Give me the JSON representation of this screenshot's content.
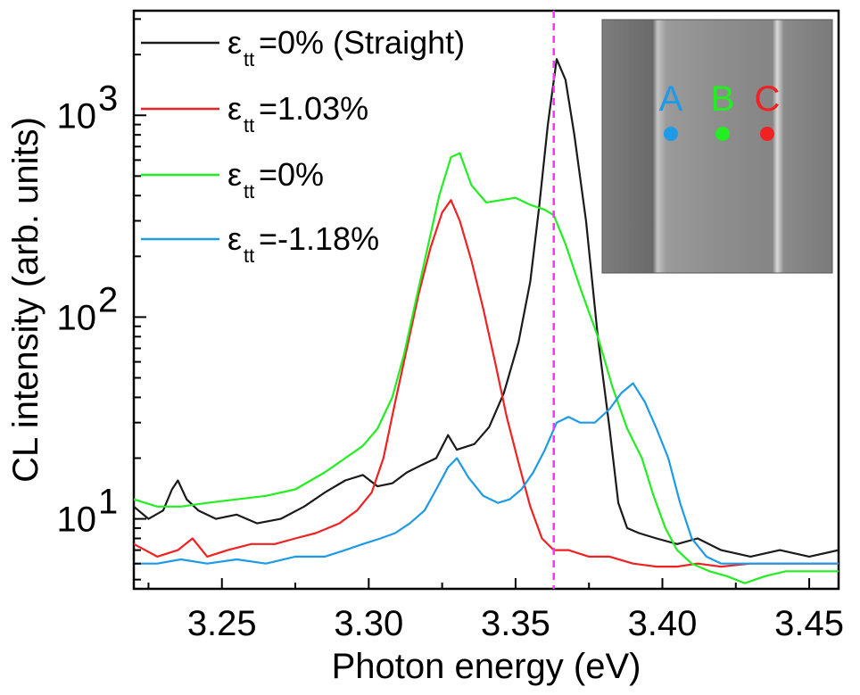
{
  "chart_data": {
    "type": "line",
    "xlabel": "Photon energy (eV)",
    "ylabel": "CL intensity (arb. units)",
    "xlim": [
      3.22,
      3.46
    ],
    "ylim": [
      4.5,
      3300
    ],
    "yscale": "log",
    "x_ticks": [
      3.25,
      3.3,
      3.35,
      3.4,
      3.45
    ],
    "x_tick_labels": [
      "3.25",
      "3.30",
      "3.35",
      "3.40",
      "3.45"
    ],
    "y_ticks": [
      10,
      100,
      1000
    ],
    "y_tick_bases": [
      "10",
      "10",
      "10"
    ],
    "y_tick_exponents": [
      "1",
      "2",
      "3"
    ],
    "grid": false,
    "legend_position": "top-left",
    "reference_line": {
      "x": 3.363,
      "color": "#ff33ff",
      "style": "dashed"
    },
    "series": [
      {
        "legend_base": "ε",
        "legend_sub": "tt",
        "legend_rest": "=0% (Straight)",
        "color": "#1a1a1a",
        "points": [
          [
            3.22,
            11.5
          ],
          [
            3.225,
            10.0
          ],
          [
            3.23,
            11.0
          ],
          [
            3.233,
            14.0
          ],
          [
            3.235,
            15.5
          ],
          [
            3.238,
            12.5
          ],
          [
            3.242,
            11.0
          ],
          [
            3.248,
            10.0
          ],
          [
            3.255,
            10.5
          ],
          [
            3.262,
            9.5
          ],
          [
            3.27,
            10.0
          ],
          [
            3.278,
            11.5
          ],
          [
            3.285,
            13.5
          ],
          [
            3.292,
            15.5
          ],
          [
            3.298,
            16.5
          ],
          [
            3.303,
            14.5
          ],
          [
            3.308,
            15.0
          ],
          [
            3.313,
            17.0
          ],
          [
            3.318,
            18.5
          ],
          [
            3.323,
            20.0
          ],
          [
            3.327,
            26.0
          ],
          [
            3.33,
            22.0
          ],
          [
            3.336,
            23.5
          ],
          [
            3.341,
            28.5
          ],
          [
            3.346,
            42.0
          ],
          [
            3.351,
            75.0
          ],
          [
            3.355,
            150.0
          ],
          [
            3.358,
            350.0
          ],
          [
            3.361,
            900.0
          ],
          [
            3.364,
            1900.0
          ],
          [
            3.367,
            1500.0
          ],
          [
            3.37,
            800.0
          ],
          [
            3.374,
            300.0
          ],
          [
            3.378,
            80.0
          ],
          [
            3.382,
            28.0
          ],
          [
            3.385,
            12.0
          ],
          [
            3.388,
            9.0
          ],
          [
            3.392,
            8.5
          ],
          [
            3.398,
            8.0
          ],
          [
            3.405,
            7.5
          ],
          [
            3.412,
            8.0
          ],
          [
            3.42,
            7.0
          ],
          [
            3.43,
            6.5
          ],
          [
            3.44,
            7.0
          ],
          [
            3.45,
            6.5
          ],
          [
            3.46,
            7.0
          ]
        ]
      },
      {
        "legend_base": "ε",
        "legend_sub": "tt",
        "legend_rest": "=1.03%",
        "color": "#ee2222",
        "points": [
          [
            3.22,
            7.5
          ],
          [
            3.228,
            6.5
          ],
          [
            3.235,
            7.0
          ],
          [
            3.24,
            8.0
          ],
          [
            3.245,
            6.5
          ],
          [
            3.252,
            7.0
          ],
          [
            3.26,
            7.5
          ],
          [
            3.268,
            7.5
          ],
          [
            3.275,
            8.0
          ],
          [
            3.282,
            8.5
          ],
          [
            3.29,
            9.5
          ],
          [
            3.296,
            11.0
          ],
          [
            3.301,
            13.5
          ],
          [
            3.305,
            20.0
          ],
          [
            3.309,
            38.0
          ],
          [
            3.313,
            70.0
          ],
          [
            3.317,
            130.0
          ],
          [
            3.321,
            220.0
          ],
          [
            3.325,
            330.0
          ],
          [
            3.328,
            380.0
          ],
          [
            3.331,
            300.0
          ],
          [
            3.335,
            190.0
          ],
          [
            3.339,
            110.0
          ],
          [
            3.343,
            60.0
          ],
          [
            3.347,
            32.0
          ],
          [
            3.351,
            19.0
          ],
          [
            3.355,
            11.5
          ],
          [
            3.359,
            8.0
          ],
          [
            3.363,
            7.0
          ],
          [
            3.368,
            7.0
          ],
          [
            3.375,
            6.5
          ],
          [
            3.382,
            6.5
          ],
          [
            3.39,
            6.0
          ],
          [
            3.398,
            5.8
          ],
          [
            3.405,
            5.8
          ],
          [
            3.412,
            6.0
          ],
          [
            3.42,
            5.8
          ],
          [
            3.43,
            6.0
          ],
          [
            3.44,
            6.0
          ],
          [
            3.45,
            6.0
          ],
          [
            3.46,
            6.0
          ]
        ]
      },
      {
        "legend_base": "ε",
        "legend_sub": "tt",
        "legend_rest": "=0%",
        "color": "#22ee22",
        "points": [
          [
            3.22,
            12.5
          ],
          [
            3.228,
            11.5
          ],
          [
            3.236,
            11.5
          ],
          [
            3.245,
            12.0
          ],
          [
            3.255,
            12.5
          ],
          [
            3.265,
            13.0
          ],
          [
            3.275,
            14.0
          ],
          [
            3.285,
            17.0
          ],
          [
            3.292,
            20.0
          ],
          [
            3.298,
            23.0
          ],
          [
            3.303,
            28.0
          ],
          [
            3.308,
            40.0
          ],
          [
            3.312,
            65.0
          ],
          [
            3.316,
            120.0
          ],
          [
            3.32,
            220.0
          ],
          [
            3.324,
            400.0
          ],
          [
            3.328,
            620.0
          ],
          [
            3.331,
            650.0
          ],
          [
            3.335,
            450.0
          ],
          [
            3.34,
            370.0
          ],
          [
            3.345,
            380.0
          ],
          [
            3.35,
            390.0
          ],
          [
            3.355,
            360.0
          ],
          [
            3.36,
            340.0
          ],
          [
            3.363,
            320.0
          ],
          [
            3.367,
            230.0
          ],
          [
            3.372,
            140.0
          ],
          [
            3.378,
            80.0
          ],
          [
            3.383,
            45.0
          ],
          [
            3.388,
            28.0
          ],
          [
            3.393,
            20.0
          ],
          [
            3.397,
            13.0
          ],
          [
            3.401,
            9.0
          ],
          [
            3.405,
            7.0
          ],
          [
            3.41,
            6.0
          ],
          [
            3.416,
            5.5
          ],
          [
            3.422,
            5.2
          ],
          [
            3.428,
            4.8
          ],
          [
            3.435,
            5.2
          ],
          [
            3.442,
            5.5
          ],
          [
            3.45,
            5.5
          ],
          [
            3.46,
            5.5
          ]
        ]
      },
      {
        "legend_base": "ε",
        "legend_sub": "tt",
        "legend_rest": "=-1.18%",
        "color": "#1e9ae6",
        "points": [
          [
            3.22,
            6.0
          ],
          [
            3.228,
            6.0
          ],
          [
            3.236,
            6.3
          ],
          [
            3.245,
            6.0
          ],
          [
            3.255,
            6.3
          ],
          [
            3.265,
            6.0
          ],
          [
            3.275,
            6.5
          ],
          [
            3.285,
            6.5
          ],
          [
            3.292,
            7.0
          ],
          [
            3.298,
            7.5
          ],
          [
            3.304,
            8.0
          ],
          [
            3.309,
            8.5
          ],
          [
            3.314,
            9.5
          ],
          [
            3.319,
            11.0
          ],
          [
            3.323,
            14.0
          ],
          [
            3.327,
            18.0
          ],
          [
            3.33,
            20.0
          ],
          [
            3.334,
            16.0
          ],
          [
            3.339,
            13.0
          ],
          [
            3.344,
            12.0
          ],
          [
            3.348,
            12.5
          ],
          [
            3.352,
            14.0
          ],
          [
            3.356,
            17.0
          ],
          [
            3.36,
            22.0
          ],
          [
            3.364,
            30.0
          ],
          [
            3.368,
            32.0
          ],
          [
            3.372,
            30.0
          ],
          [
            3.377,
            30.0
          ],
          [
            3.382,
            35.0
          ],
          [
            3.386,
            42.0
          ],
          [
            3.39,
            47.0
          ],
          [
            3.394,
            38.0
          ],
          [
            3.398,
            28.0
          ],
          [
            3.402,
            20.0
          ],
          [
            3.406,
            12.0
          ],
          [
            3.41,
            8.0
          ],
          [
            3.415,
            6.5
          ],
          [
            3.42,
            6.0
          ],
          [
            3.43,
            6.0
          ],
          [
            3.44,
            6.0
          ],
          [
            3.45,
            6.0
          ],
          [
            3.46,
            6.0
          ]
        ]
      }
    ],
    "inset": {
      "labels": [
        {
          "text": "A",
          "color": "#1e9ae6"
        },
        {
          "text": "B",
          "color": "#22ee22"
        },
        {
          "text": "C",
          "color": "#ee2222"
        }
      ]
    }
  }
}
